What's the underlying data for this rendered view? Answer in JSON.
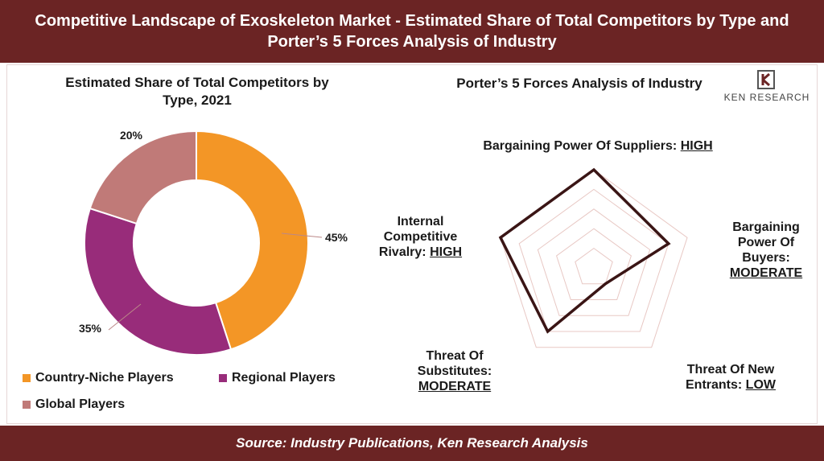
{
  "header": {
    "title": "Competitive Landscape of Exoskeleton Market - Estimated Share of Total Competitors by Type and Porter’s 5 Forces Analysis of Industry"
  },
  "footer": {
    "source": "Source: Industry Publications, Ken Research Analysis"
  },
  "logo": {
    "text": "KEN RESEARCH"
  },
  "chart_data": [
    {
      "type": "pie",
      "title": "Estimated Share of Total Competitors by Type, 2021",
      "categories": [
        "Country-Niche Players",
        "Regional Players",
        "Global Players"
      ],
      "values": [
        45,
        35,
        20
      ],
      "labels": [
        "45%",
        "35%",
        "20%"
      ],
      "colors": [
        "#f39626",
        "#982c7a",
        "#c07a78"
      ],
      "legend": "bottom"
    },
    {
      "type": "radar",
      "title": "Porter’s 5 Forces Analysis of Industry",
      "categories": [
        "Bargaining Power Of Suppliers",
        "Bargaining Power Of Buyers",
        "Threat Of New Entrants",
        "Threat Of Substitutes",
        "Internal Competitive Rivalry"
      ],
      "levels": [
        "HIGH",
        "MODERATE",
        "LOW",
        "MODERATE",
        "HIGH"
      ],
      "values": [
        5,
        4,
        1,
        4,
        5
      ],
      "rmax": 5
    }
  ],
  "forces": [
    {
      "name": "Bargaining Power Of Suppliers: ",
      "level": "HIGH"
    },
    {
      "name1": "Bargaining",
      "name2": "Power Of",
      "name3": "Buyers:",
      "level": "MODERATE"
    },
    {
      "name1": "Threat Of New",
      "name2": "Entrants: ",
      "level": "LOW"
    },
    {
      "name1": "Threat Of",
      "name2": "Substitutes:",
      "level": "MODERATE"
    },
    {
      "name1": "Internal",
      "name2": "Competitive",
      "name3": "Rivalry: ",
      "level": "HIGH"
    }
  ]
}
